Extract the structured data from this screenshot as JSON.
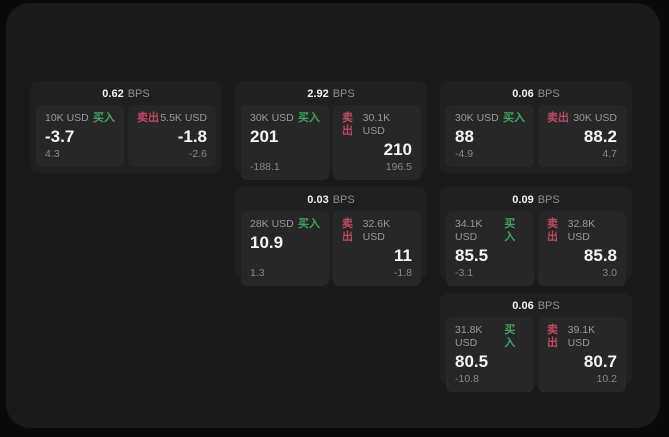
{
  "labels": {
    "buy": "买入",
    "sell": "卖出",
    "bps_suffix": "BPS"
  },
  "colors": {
    "buy_green": "#3fa45c",
    "sell_red": "#bf4a5f",
    "surface": "#1a1a1a",
    "card": "#202020",
    "panel": "#272727"
  },
  "cards": [
    {
      "bps": "0.62",
      "grid": {
        "col": 1,
        "row": 1
      },
      "buy": {
        "amount": "10K USD",
        "value": "-3.7",
        "sub": "4.3"
      },
      "sell": {
        "amount": "5.5K USD",
        "value": "-1.8",
        "sub": "-2.6"
      }
    },
    {
      "bps": "2.92",
      "grid": {
        "col": 2,
        "row": 1
      },
      "buy": {
        "amount": "30K USD",
        "value": "201",
        "sub": "-188.1"
      },
      "sell": {
        "amount": "30.1K USD",
        "value": "210",
        "sub": "196.5"
      }
    },
    {
      "bps": "0.06",
      "grid": {
        "col": 3,
        "row": 1
      },
      "buy": {
        "amount": "30K USD",
        "value": "88",
        "sub": "-4.9"
      },
      "sell": {
        "amount": "30K USD",
        "value": "88.2",
        "sub": "4.7"
      }
    },
    {
      "bps": "0.03",
      "grid": {
        "col": 2,
        "row": 2
      },
      "buy": {
        "amount": "28K USD",
        "value": "10.9",
        "sub": "1.3"
      },
      "sell": {
        "amount": "32.6K USD",
        "value": "11",
        "sub": "-1.8"
      }
    },
    {
      "bps": "0.09",
      "grid": {
        "col": 3,
        "row": 2
      },
      "buy": {
        "amount": "34.1K USD",
        "value": "85.5",
        "sub": "-3.1"
      },
      "sell": {
        "amount": "32.8K USD",
        "value": "85.8",
        "sub": "3.0"
      }
    },
    {
      "bps": "0.06",
      "grid": {
        "col": 3,
        "row": 3
      },
      "buy": {
        "amount": "31.8K USD",
        "value": "80.5",
        "sub": "-10.8"
      },
      "sell": {
        "amount": "39.1K USD",
        "value": "80.7",
        "sub": "10.2"
      }
    }
  ]
}
